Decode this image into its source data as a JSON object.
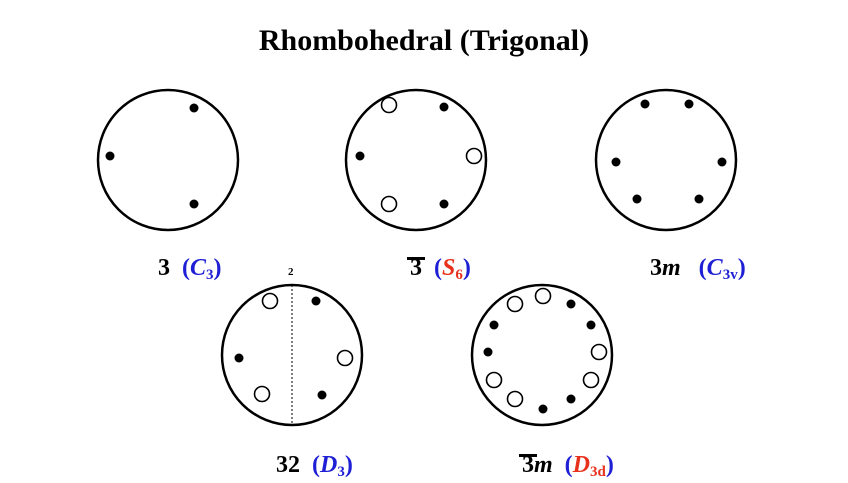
{
  "title": "Rhombohedral (Trigonal)",
  "colors": {
    "hm": "#000000",
    "blue": "#1f1fd6",
    "red": "#e8311c"
  },
  "groups": {
    "g3": {
      "hm": "3",
      "sch_letter": "C",
      "sch_sub": "3"
    },
    "g3bar": {
      "hm": "3",
      "sch_letter": "S",
      "sch_sub": "6"
    },
    "g3m": {
      "hm_num": "3",
      "hm_m": "m",
      "sch_letter": "C",
      "sch_sub": "3v"
    },
    "g32": {
      "hm": "32",
      "sch_letter": "D",
      "sch_sub": "3",
      "axis_label": "2"
    },
    "g3barm": {
      "hm_num": "3",
      "hm_m": "m",
      "sch_letter": "D",
      "sch_sub": "3d"
    }
  },
  "open_paren": "(",
  "close_paren": ")"
}
